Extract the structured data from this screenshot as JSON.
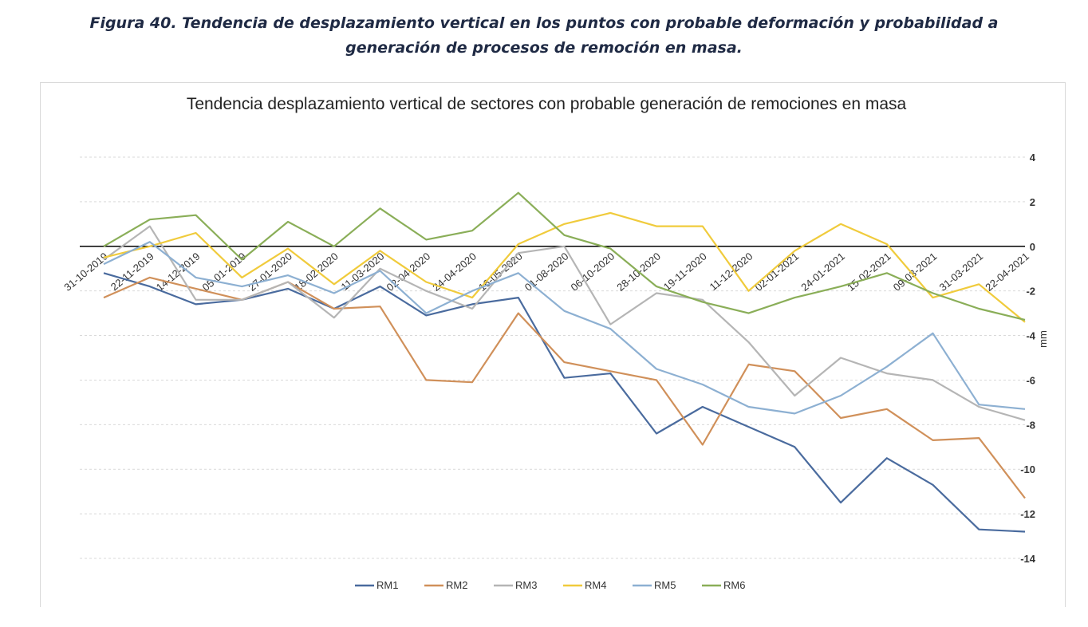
{
  "figure_caption": "Figura 40. Tendencia de desplazamiento vertical en los puntos con probable deformación y probabilidad a generación de procesos de remoción en masa.",
  "chart_data": {
    "type": "line",
    "title": "Tendencia desplazamiento vertical de sectores con probable generación de remociones en masa",
    "y_axis_label": "mm",
    "categories": [
      "31-10-2019",
      "22-11-2019",
      "14-12-2019",
      "05-01-2019",
      "27-01-2020",
      "18-02-2020",
      "11-03-2020",
      "02-04-2020",
      "24-04-2020",
      "16-05-2020",
      "01-08-2020",
      "06-10-2020",
      "28-10-2020",
      "19-11-2020",
      "11-12-2020",
      "02-01-2021",
      "24-01-2021",
      "15-02-2021",
      "09-03-2021",
      "31-03-2021",
      "22-04-2021"
    ],
    "series": [
      {
        "name": "RM1",
        "color": "#4a6b9e",
        "values": [
          -1.2,
          -1.8,
          -2.6,
          -2.4,
          -1.9,
          -2.8,
          -1.8,
          -3.1,
          -2.6,
          -2.3,
          -5.9,
          -5.7,
          -8.4,
          -7.2,
          -8.1,
          -9.0,
          -11.5,
          -9.5,
          -10.7,
          -12.7,
          -12.8
        ]
      },
      {
        "name": "RM2",
        "color": "#d0905a",
        "values": [
          -2.3,
          -1.4,
          -1.9,
          -2.4,
          -1.6,
          -2.8,
          -2.7,
          -6.0,
          -6.1,
          -3.0,
          -5.2,
          -5.6,
          -6.0,
          -8.9,
          -5.3,
          -5.6,
          -7.7,
          -7.3,
          -8.7,
          -8.6,
          -11.3
        ]
      },
      {
        "name": "RM3",
        "color": "#b5b5b5",
        "values": [
          -0.6,
          0.9,
          -2.4,
          -2.4,
          -1.6,
          -3.2,
          -1.0,
          -2.0,
          -2.8,
          -0.3,
          0,
          -3.5,
          -2.1,
          -2.4,
          -4.3,
          -6.7,
          -5.0,
          -5.7,
          -6.0,
          -7.2,
          -7.8
        ]
      },
      {
        "name": "RM4",
        "color": "#f0cb3c",
        "values": [
          -0.5,
          0.0,
          0.6,
          -1.4,
          -0.1,
          -1.7,
          -0.2,
          -1.6,
          -2.3,
          0.1,
          1.0,
          1.5,
          0.9,
          0.9,
          -2.0,
          -0.2,
          1.0,
          0.1,
          -2.3,
          -1.7,
          -3.4
        ]
      },
      {
        "name": "RM5",
        "color": "#8db0d2",
        "values": [
          -0.8,
          0.2,
          -1.4,
          -1.8,
          -1.3,
          -2.1,
          -1.1,
          -3.0,
          -2.0,
          -1.2,
          -2.9,
          -3.7,
          -5.5,
          -6.2,
          -7.2,
          -7.5,
          -6.7,
          -5.4,
          -3.9,
          -7.1,
          -7.3
        ]
      },
      {
        "name": "RM6",
        "color": "#8aae58",
        "values": [
          0,
          1.2,
          1.4,
          -0.6,
          1.1,
          0,
          1.7,
          0.3,
          0.7,
          2.4,
          0.5,
          -0.1,
          -1.8,
          -2.5,
          -3.0,
          -2.3,
          -1.8,
          -1.2,
          -2.1,
          -2.8,
          -3.3
        ]
      }
    ],
    "ylim": [
      -14,
      4
    ],
    "yticks": [
      4,
      2,
      0,
      -2,
      -4,
      -6,
      -8,
      -10,
      -12,
      -14
    ],
    "grid": true,
    "legend": "bottom"
  }
}
